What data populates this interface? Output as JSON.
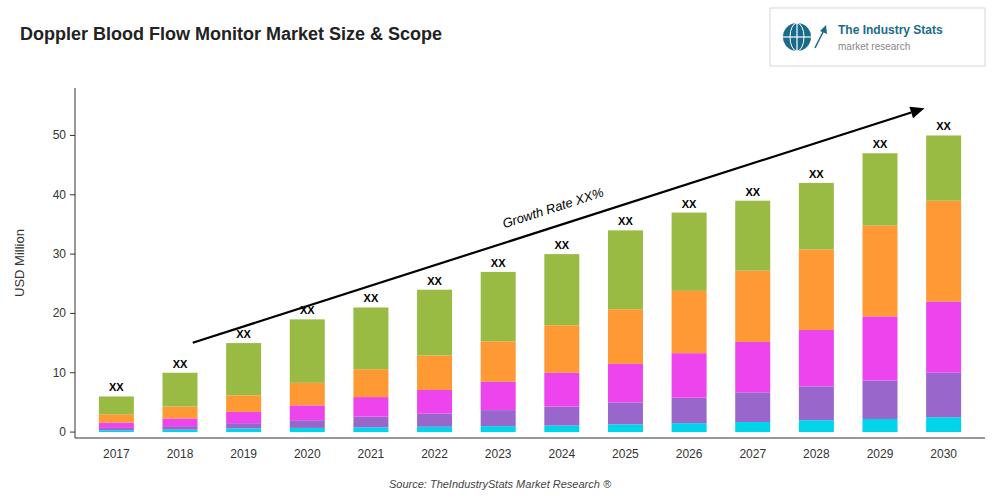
{
  "chart_data": {
    "type": "bar",
    "stacked": true,
    "grid": false,
    "title": "Doppler Blood Flow Monitor Market Size & Scope",
    "ylabel": "USD Million",
    "categories": [
      "2017",
      "2018",
      "2019",
      "2020",
      "2021",
      "2022",
      "2023",
      "2024",
      "2025",
      "2026",
      "2027",
      "2028",
      "2029",
      "2030"
    ],
    "series": [
      {
        "color": "#00d4e8",
        "values": [
          0.3,
          0.4,
          0.6,
          0.7,
          0.8,
          0.9,
          1.0,
          1.1,
          1.3,
          1.5,
          1.7,
          2.0,
          2.2,
          2.5
        ]
      },
      {
        "color": "#9966cc",
        "values": [
          0.4,
          0.6,
          0.9,
          1.3,
          1.8,
          2.2,
          2.7,
          3.2,
          3.7,
          4.3,
          5.0,
          5.7,
          6.5,
          7.5
        ]
      },
      {
        "color": "#ee44ee",
        "values": [
          0.9,
          1.3,
          1.9,
          2.5,
          3.3,
          4.0,
          4.8,
          5.7,
          6.5,
          7.5,
          8.5,
          9.5,
          10.8,
          12.0
        ]
      },
      {
        "color": "#ff9933",
        "values": [
          1.4,
          2.0,
          2.8,
          3.8,
          4.7,
          5.8,
          6.8,
          8.0,
          9.2,
          10.5,
          12.0,
          13.6,
          15.3,
          17.0
        ]
      },
      {
        "color": "#99bb44",
        "values": [
          3.0,
          5.7,
          8.8,
          10.7,
          10.4,
          11.1,
          11.7,
          12.0,
          13.3,
          13.2,
          11.8,
          11.2,
          12.2,
          11.0
        ]
      }
    ],
    "totals": [
      6,
      10,
      15,
      19,
      21,
      24,
      27,
      30,
      34,
      37,
      39,
      42,
      47,
      50
    ],
    "total_labels": [
      "XX",
      "XX",
      "XX",
      "XX",
      "XX",
      "XX",
      "XX",
      "XX",
      "XX",
      "XX",
      "XX",
      "XX",
      "XX",
      "XX"
    ],
    "annotation": "Growth Rate XX%",
    "source": "Source: TheIndustryStats Market Research ®",
    "logo_text": [
      "The Industry Stats",
      "market research"
    ],
    "ylim": [
      -1.0,
      58
    ],
    "yticks": [
      0,
      10,
      20,
      30,
      40,
      50
    ]
  }
}
